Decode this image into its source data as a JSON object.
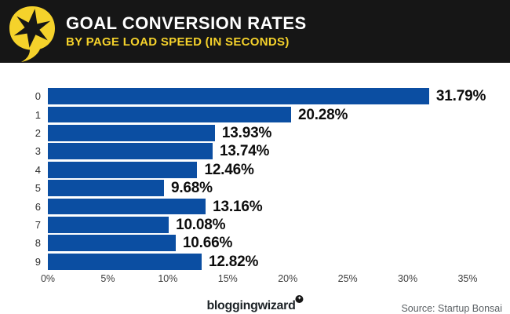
{
  "header": {
    "title": "GOAL CONVERSION RATES",
    "subtitle": "BY PAGE LOAD SPEED (IN SECONDS)",
    "logo": "star-speech-bubble",
    "colors": {
      "background": "#161616",
      "title_text": "#FFFFFF",
      "accent_yellow": "#F5D22B"
    }
  },
  "chart_data": {
    "type": "bar",
    "orientation": "horizontal",
    "title": "GOAL CONVERSION RATES",
    "subtitle": "BY PAGE LOAD SPEED (IN SECONDS)",
    "xlabel": "",
    "ylabel": "",
    "categories": [
      "0",
      "1",
      "2",
      "3",
      "4",
      "5",
      "6",
      "7",
      "8",
      "9"
    ],
    "values": [
      31.79,
      20.28,
      13.93,
      13.74,
      12.46,
      9.68,
      13.16,
      10.08,
      10.66,
      12.82
    ],
    "value_labels": [
      "31.79%",
      "20.28%",
      "13.93%",
      "13.74%",
      "12.46%",
      "9.68%",
      "13.16%",
      "10.08%",
      "10.66%",
      "12.82%"
    ],
    "x_ticks": [
      "0%",
      "5%",
      "10%",
      "15%",
      "20%",
      "25%",
      "30%",
      "35%"
    ],
    "xlim": [
      0,
      35
    ],
    "bar_color": "#0B4EA2",
    "grid": false,
    "legend": false
  },
  "footer": {
    "brand": "bloggingwizard",
    "brand_icon": "sparkle-circle-icon",
    "brand_icon_glyph": "✦",
    "source": "Source: Startup Bonsai"
  }
}
